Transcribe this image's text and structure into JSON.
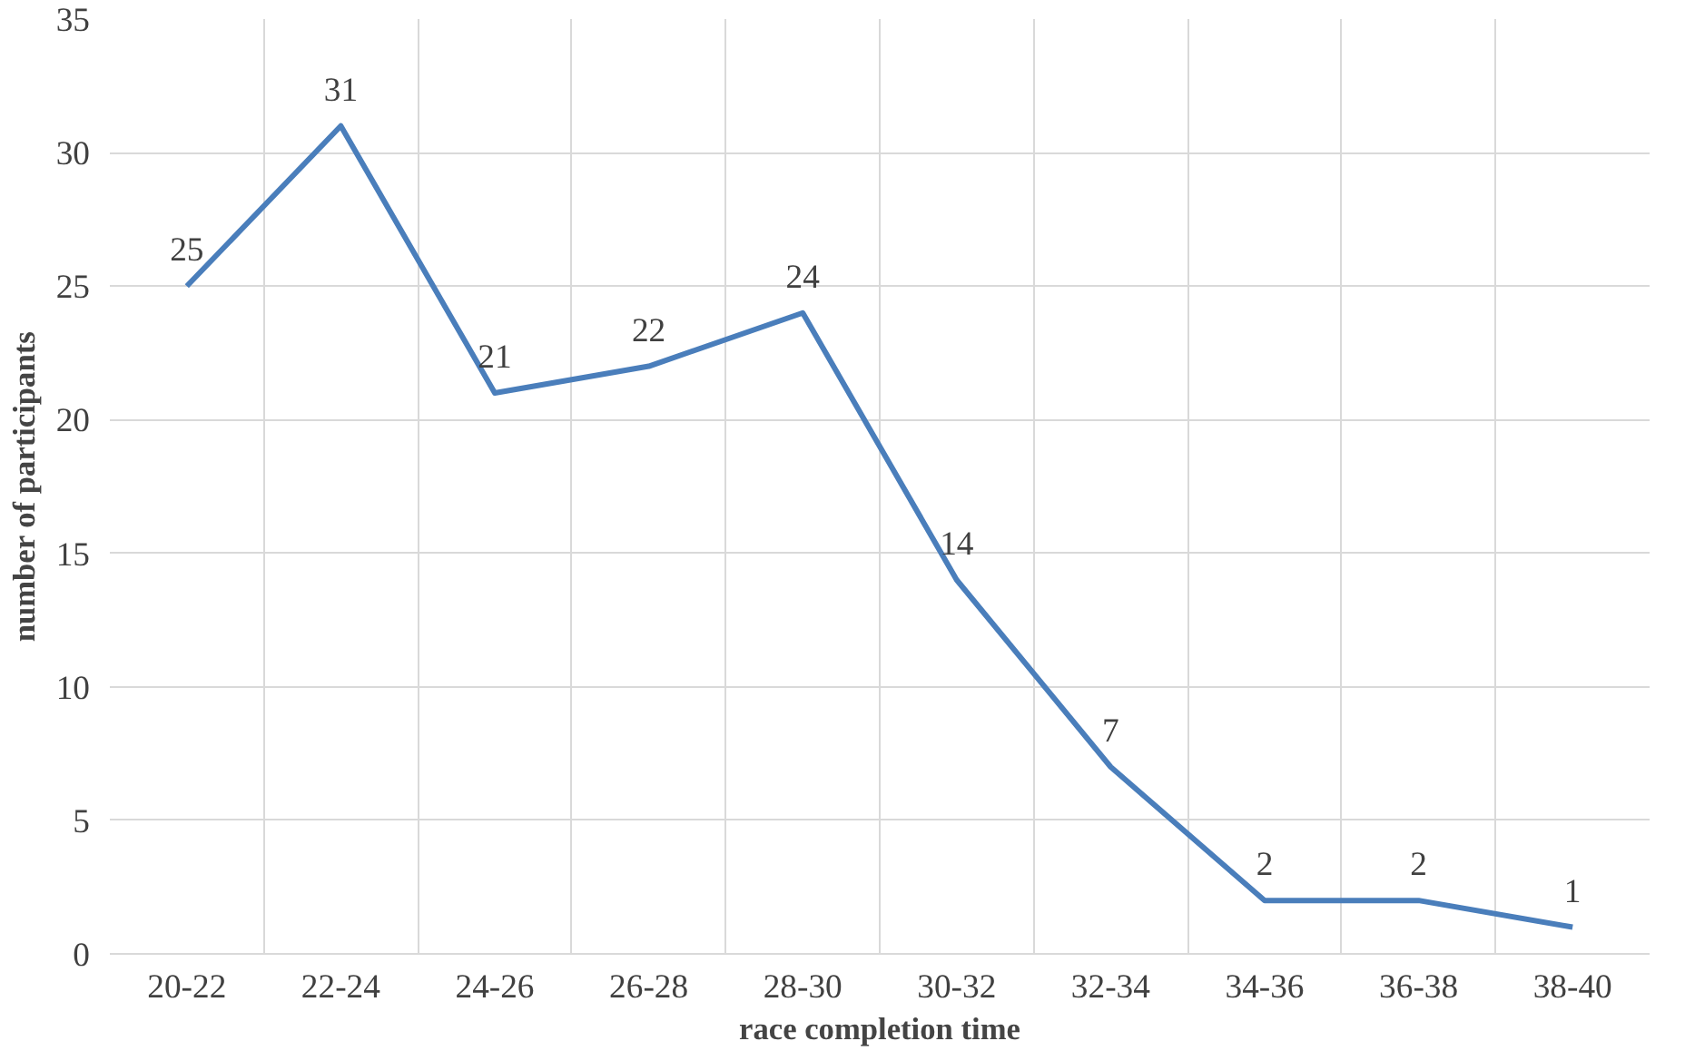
{
  "chart_data": {
    "type": "line",
    "xlabel": "race completion time",
    "ylabel": "number of participants",
    "categories": [
      "20-22",
      "22-24",
      "24-26",
      "26-28",
      "28-30",
      "30-32",
      "32-34",
      "34-36",
      "36-38",
      "38-40"
    ],
    "series": [
      {
        "color": "#4a7ebb",
        "values": [
          25,
          31,
          21,
          22,
          24,
          14,
          7,
          2,
          2,
          1
        ]
      }
    ],
    "ylim": [
      0,
      35
    ],
    "yticks": [
      0,
      5,
      10,
      15,
      20,
      25,
      30,
      35
    ],
    "grid": true,
    "data_labels": true,
    "marker": "none",
    "line_style": "solid"
  }
}
